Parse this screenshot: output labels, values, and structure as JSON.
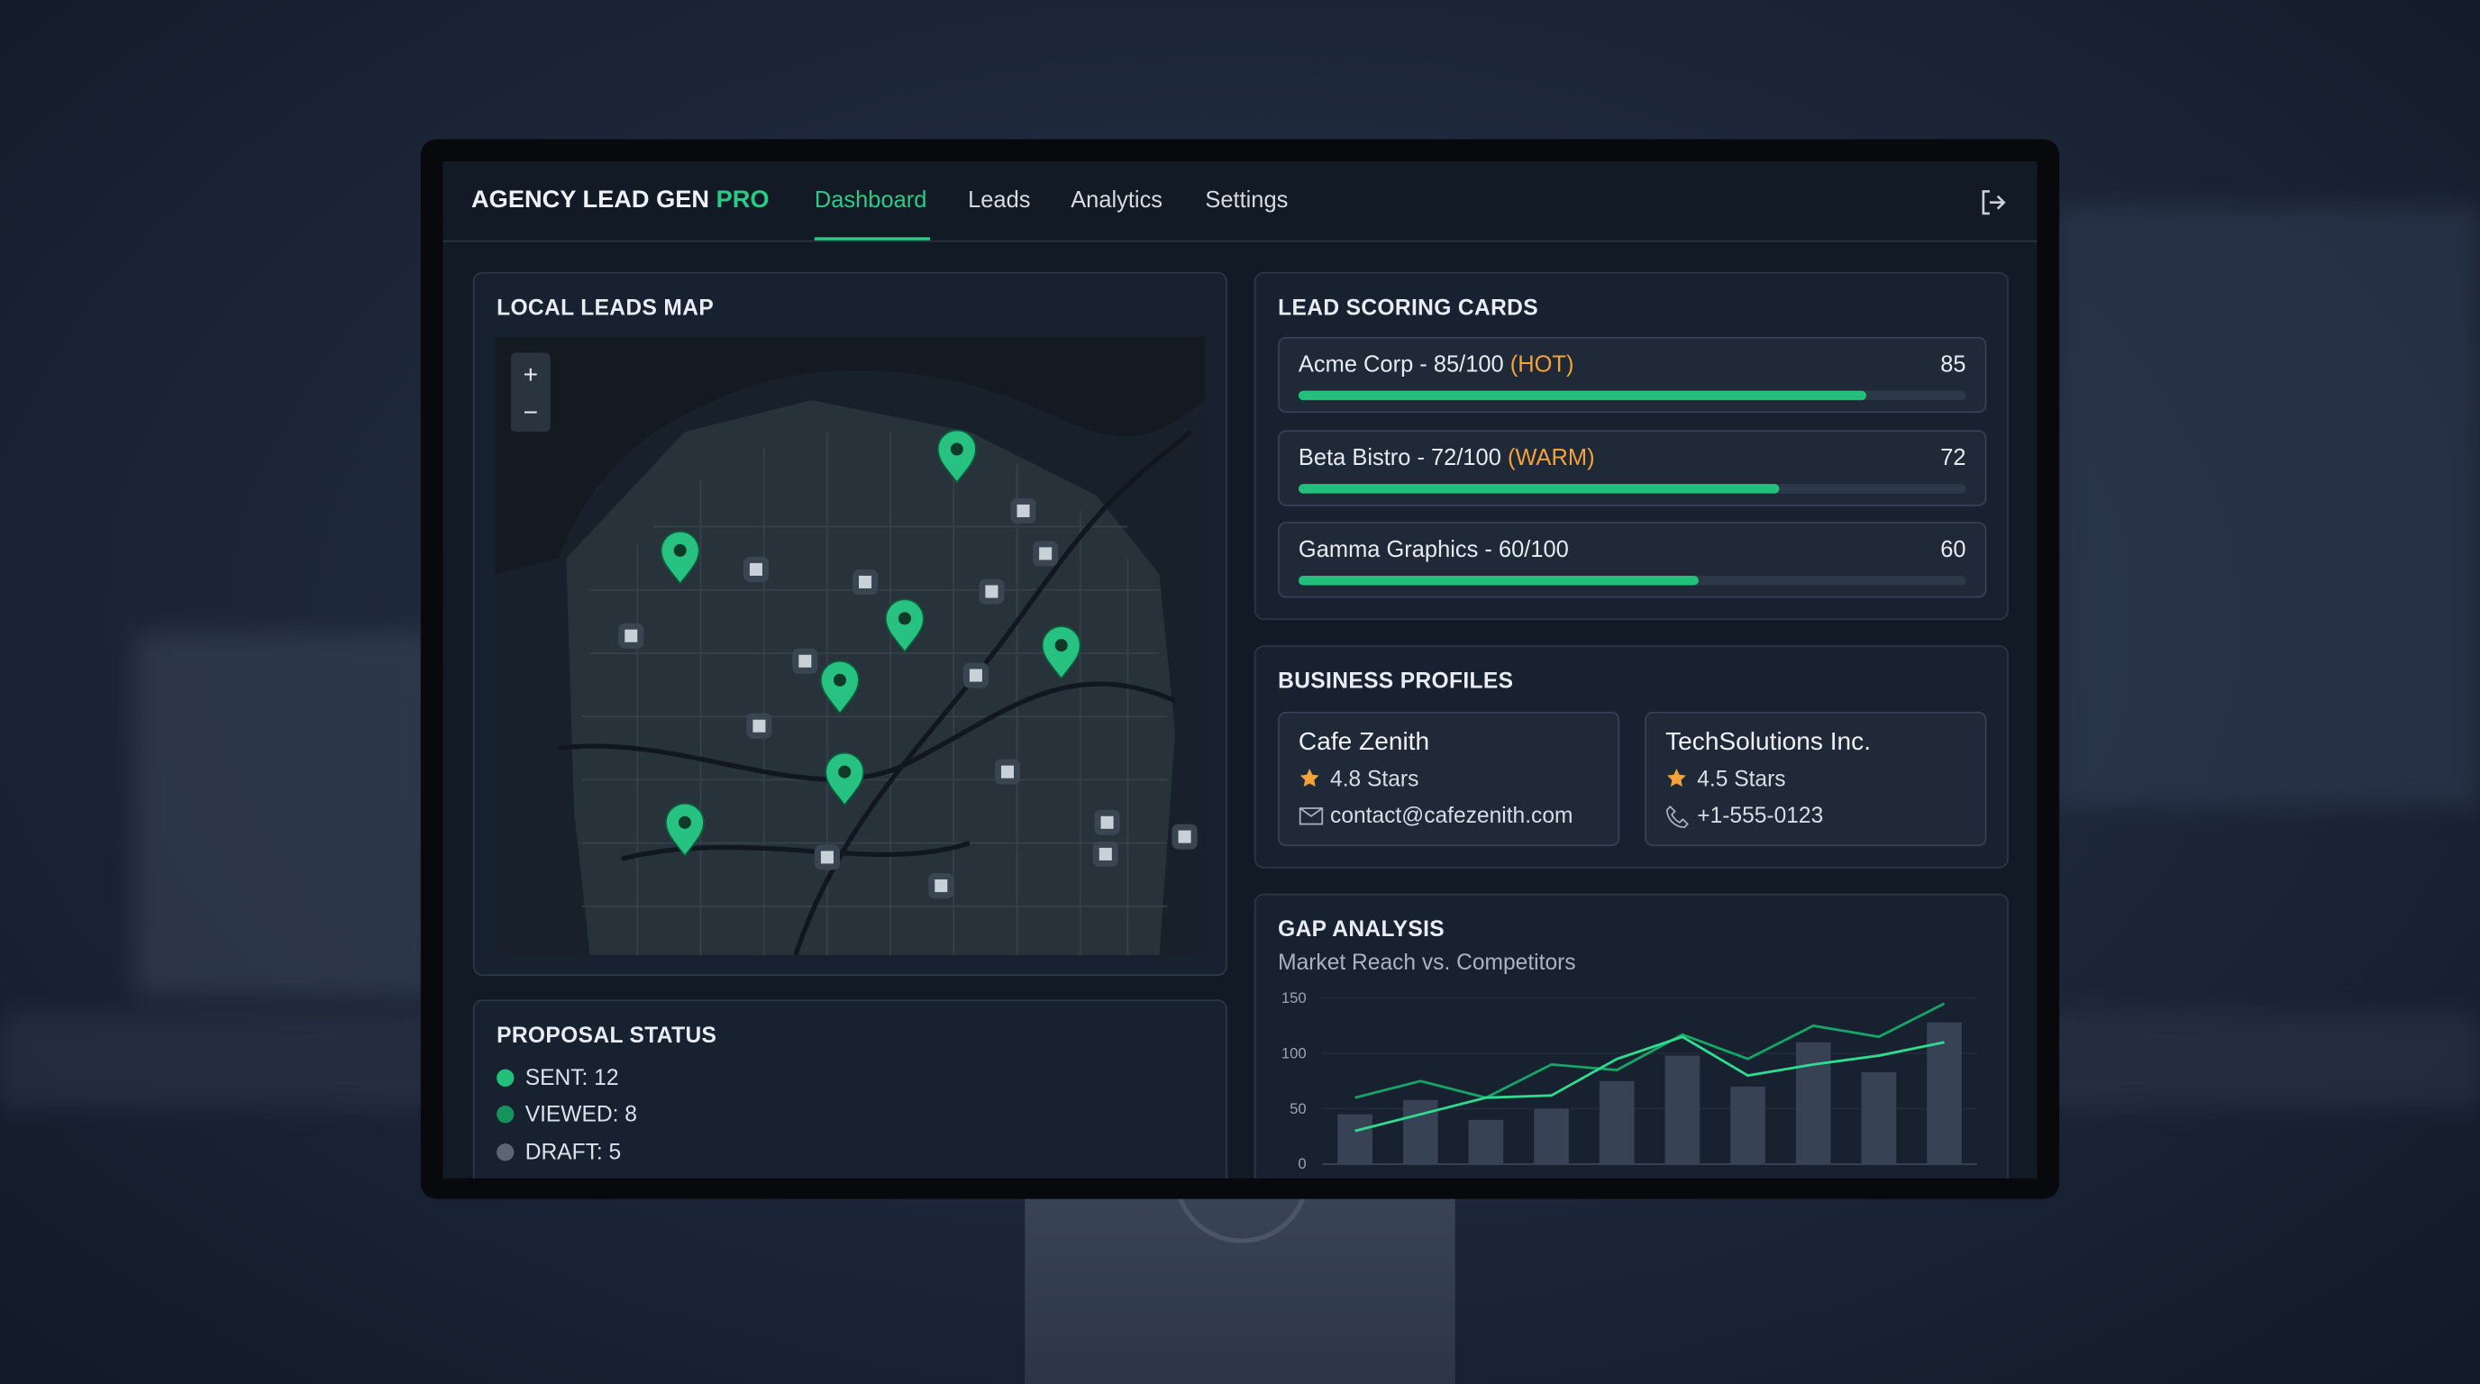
{
  "header": {
    "brand": "AGENCY LEAD GEN",
    "brand_accent": "PRO",
    "nav": [
      "Dashboard",
      "Leads",
      "Analytics",
      "Settings"
    ]
  },
  "map": {
    "title": "LOCAL LEADS MAP",
    "zoom_in": "+",
    "zoom_out": "−"
  },
  "proposal_status": {
    "title": "PROPOSAL STATUS",
    "items": [
      "SENT: 12",
      "VIEWED: 8",
      "DRAFT: 5"
    ]
  },
  "lead_scoring": {
    "title": "LEAD SCORING CARDS",
    "score_range": [
      0,
      100
    ],
    "cards": [
      {
        "label": "Acme Corp - 85/100",
        "tag": "(HOT)",
        "score": 85
      },
      {
        "label": "Beta Bistro - 72/100",
        "tag": "(WARM)",
        "score": 72
      },
      {
        "label": "Gamma Graphics - 60/100",
        "score": 60
      }
    ]
  },
  "business_profiles": {
    "title": "BUSINESS PROFILES",
    "profiles": [
      {
        "name": "Cafe Zenith",
        "rating": "4.8 Stars",
        "contact": "contact@cafezenith.com"
      },
      {
        "name": "TechSolutions Inc.",
        "rating": "4.5 Stars",
        "contact": "+1-555-0123"
      }
    ]
  },
  "gap_analysis": {
    "type": "bar",
    "title": "GAP ANALYSIS",
    "subtitle": "Market Reach vs. Competitors",
    "ylim": [
      0,
      150
    ],
    "yticks": [
      0,
      50,
      100,
      150
    ],
    "bars": {
      "color": "#374354",
      "values": [
        45,
        58,
        40,
        50,
        75,
        98,
        70,
        110,
        83,
        128
      ]
    },
    "lines": [
      {
        "color": "#15a567",
        "values": [
          60,
          75,
          60,
          90,
          85,
          117,
          95,
          125,
          115,
          145
        ]
      },
      {
        "color": "#2fdc90",
        "values": [
          30,
          45,
          60,
          62,
          95,
          115,
          80,
          90,
          98,
          110
        ]
      }
    ]
  }
}
